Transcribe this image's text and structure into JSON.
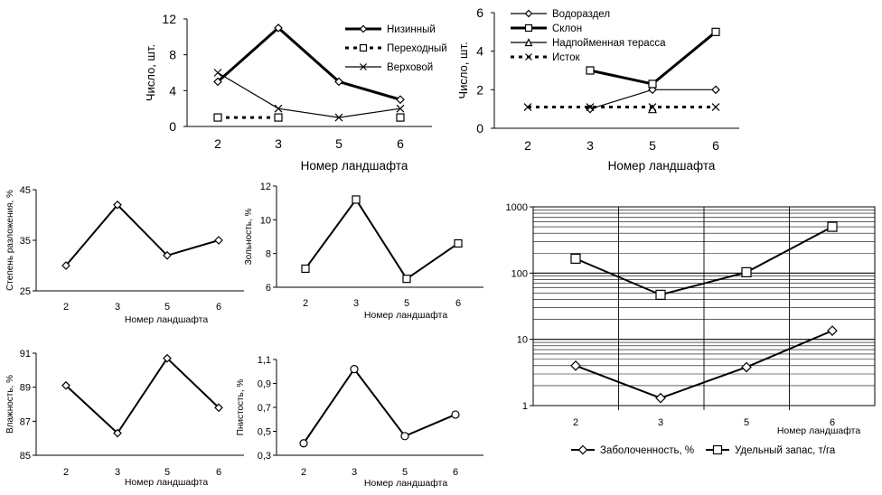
{
  "chart_data": [
    {
      "id": "c1",
      "type": "line",
      "categories": [
        "2",
        "3",
        "5",
        "6"
      ],
      "ylabel": "Число, шт.",
      "xlabel": "Номер ландшафта",
      "ylim": [
        0,
        12
      ],
      "yticks": [
        "0",
        "4",
        "8",
        "12"
      ],
      "legend": "right",
      "series": [
        {
          "name": "Низинный",
          "values": [
            5,
            11,
            5,
            3
          ],
          "marker": "diamond",
          "style": "thick",
          "color": "#000000"
        },
        {
          "name": "Переходный",
          "values": [
            1,
            1,
            null,
            1
          ],
          "marker": "square",
          "style": "dotted",
          "color": "#000000"
        },
        {
          "name": "Верховой",
          "values": [
            6,
            2,
            1,
            2
          ],
          "marker": "x",
          "style": "thin",
          "color": "#000000"
        }
      ]
    },
    {
      "id": "c2",
      "type": "line",
      "categories": [
        "2",
        "3",
        "5",
        "6"
      ],
      "ylabel": "Число, шт.",
      "xlabel": "Номер ландшафта",
      "ylim": [
        0,
        6
      ],
      "yticks": [
        "0",
        "2",
        "4",
        "6"
      ],
      "legend": "top-left",
      "series": [
        {
          "name": "Водораздел",
          "values": [
            null,
            1,
            2,
            2
          ],
          "marker": "diamond",
          "style": "thin",
          "color": "#000000"
        },
        {
          "name": "Склон",
          "values": [
            null,
            3,
            2.3,
            5
          ],
          "marker": "square",
          "style": "thick",
          "color": "#000000"
        },
        {
          "name": "Надпойменная терасса",
          "values": [
            null,
            null,
            1,
            null
          ],
          "marker": "triangle",
          "style": "thin",
          "color": "#000000"
        },
        {
          "name": "Исток",
          "values": [
            1.1,
            1.1,
            1.1,
            1.1
          ],
          "marker": "x",
          "style": "dotted",
          "color": "#000000"
        }
      ]
    },
    {
      "id": "c3",
      "type": "line",
      "categories": [
        "2",
        "3",
        "5",
        "6"
      ],
      "ylabel": "Степень разложения, %",
      "xlabel": "Номер ландшафта",
      "ylim": [
        25,
        45
      ],
      "yticks": [
        "25",
        "35",
        "45"
      ],
      "series": [
        {
          "values": [
            30,
            42,
            32,
            35
          ],
          "marker": "diamond"
        }
      ]
    },
    {
      "id": "c4",
      "type": "line",
      "categories": [
        "2",
        "3",
        "5",
        "6"
      ],
      "ylabel": "Зольность, %",
      "xlabel": "Номер ландшафта",
      "ylim": [
        6,
        12
      ],
      "yticks": [
        "6",
        "8",
        "10",
        "12"
      ],
      "series": [
        {
          "values": [
            7.1,
            11.2,
            6.5,
            8.6
          ],
          "marker": "square"
        }
      ]
    },
    {
      "id": "c5",
      "type": "line",
      "categories": [
        "2",
        "3",
        "5",
        "6"
      ],
      "ylabel": "Влажность, %",
      "xlabel": "Номер ландшафта",
      "ylim": [
        85,
        91
      ],
      "yticks": [
        "85",
        "87",
        "89",
        "91"
      ],
      "series": [
        {
          "values": [
            89.1,
            86.3,
            90.7,
            87.8
          ],
          "marker": "diamond"
        }
      ]
    },
    {
      "id": "c6",
      "type": "line",
      "categories": [
        "2",
        "3",
        "5",
        "6"
      ],
      "ylabel": "Пнистость, %",
      "xlabel": "Номер ландшафта",
      "ylim": [
        0.3,
        1.1
      ],
      "yticks": [
        "0,3",
        "0,5",
        "0,7",
        "0,9",
        "1,1"
      ],
      "series": [
        {
          "values": [
            0.4,
            1.02,
            0.46,
            0.64
          ],
          "marker": "circle"
        }
      ]
    },
    {
      "id": "c7",
      "type": "line",
      "categories": [
        "2",
        "3",
        "5",
        "6"
      ],
      "xlabel": "Номер ландшафта",
      "ylim": [
        1,
        1000
      ],
      "yscale": "log",
      "yticks": [
        "1",
        "10",
        "100",
        "1000"
      ],
      "grid": true,
      "legend": "bottom",
      "series": [
        {
          "name": "Заболоченность, %",
          "values": [
            4,
            1.3,
            3.8,
            13.5
          ],
          "marker": "diamond"
        },
        {
          "name": "Удельный запас, т/га",
          "values": [
            165,
            47,
            103,
            500
          ],
          "marker": "square"
        }
      ]
    }
  ]
}
